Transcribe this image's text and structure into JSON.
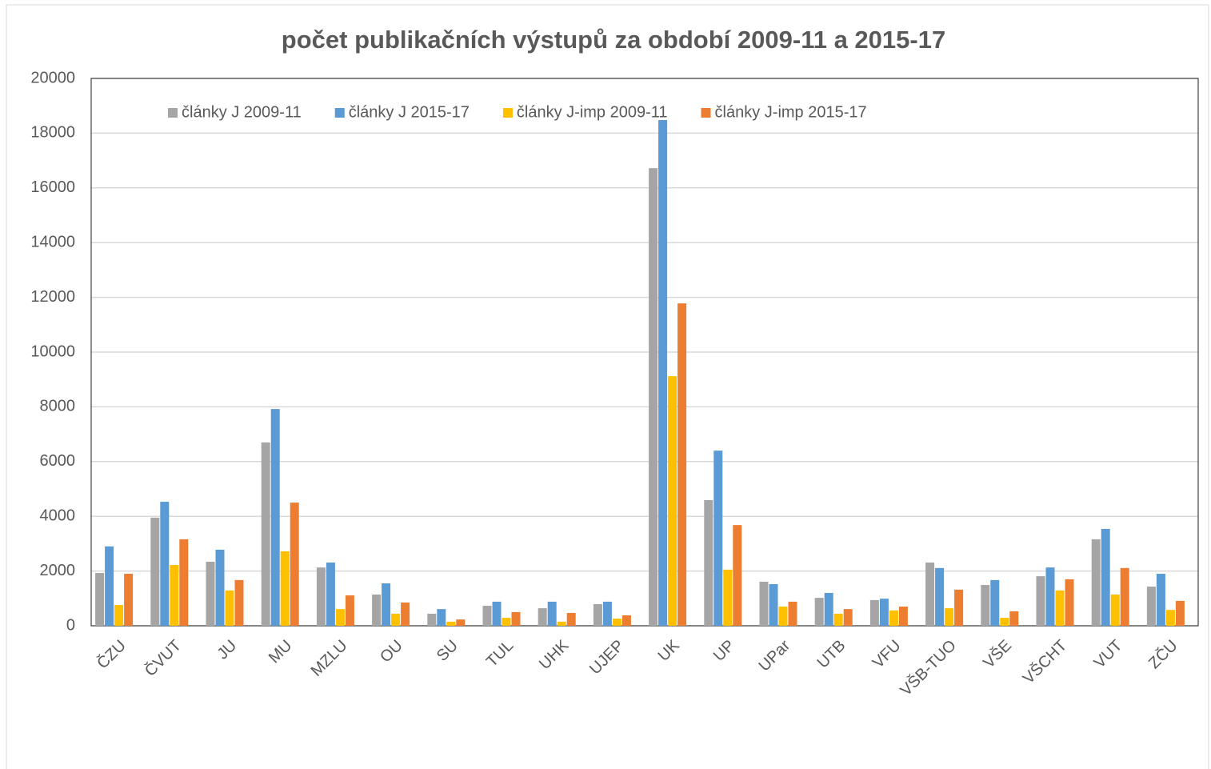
{
  "chart_data": {
    "type": "bar",
    "title": "počet publikačních výstupů za období 2009-11 a 2015-17",
    "categories": [
      "ČZU",
      "ČVUT",
      "JU",
      "MU",
      "MZLU",
      "OU",
      "SU",
      "TUL",
      "UHK",
      "UJEP",
      "UK",
      "UP",
      "UPar",
      "UTB",
      "VFU",
      "VŠB-TUO",
      "VŠE",
      "VŠCHT",
      "VUT",
      "ZČU"
    ],
    "series": [
      {
        "name": "články J 2009-11",
        "color": "#a5a5a5",
        "values": [
          1930,
          3950,
          2340,
          6700,
          2130,
          1140,
          440,
          730,
          640,
          790,
          16720,
          4590,
          1610,
          1020,
          940,
          2310,
          1490,
          1810,
          3160,
          1430
        ]
      },
      {
        "name": "články J 2015-17",
        "color": "#5b9bd5",
        "values": [
          2900,
          4530,
          2780,
          7920,
          2310,
          1550,
          610,
          880,
          880,
          880,
          18480,
          6400,
          1520,
          1200,
          990,
          2110,
          1670,
          2130,
          3540,
          1900
        ]
      },
      {
        "name": "články J-imp 2009-11",
        "color": "#ffc000",
        "values": [
          760,
          2220,
          1290,
          2720,
          610,
          440,
          150,
          290,
          150,
          260,
          9120,
          2050,
          700,
          440,
          560,
          640,
          290,
          1290,
          1140,
          580
        ]
      },
      {
        "name": "články J-imp 2015-17",
        "color": "#ed7d31",
        "values": [
          1900,
          3160,
          1670,
          4500,
          1110,
          850,
          230,
          500,
          470,
          380,
          11780,
          3680,
          880,
          610,
          700,
          1320,
          530,
          1700,
          2110,
          910
        ]
      }
    ],
    "ylim": [
      0,
      20000
    ],
    "yticks": [
      0,
      2000,
      4000,
      6000,
      8000,
      10000,
      12000,
      14000,
      16000,
      18000,
      20000
    ],
    "grid": true,
    "legend": "top-left"
  }
}
